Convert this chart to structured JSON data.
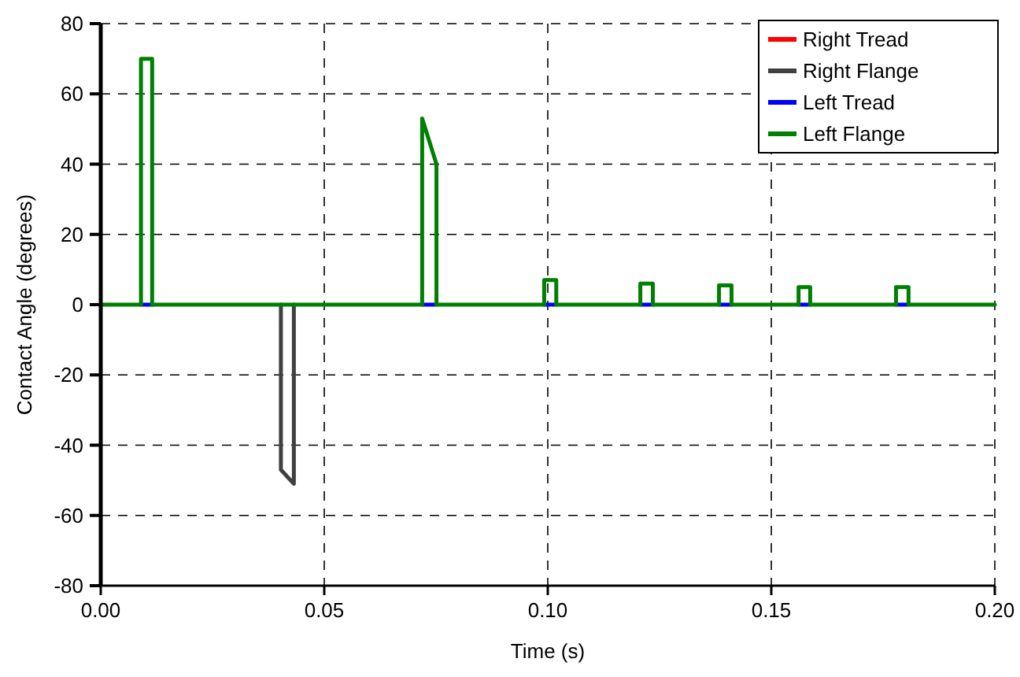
{
  "chart_data": {
    "type": "line",
    "xlabel": "Time (s)",
    "ylabel": "Contact Angle (degrees)",
    "xlim": [
      0,
      0.2
    ],
    "ylim": [
      -80,
      80
    ],
    "xticks": [
      {
        "value": 0,
        "label": "0.00"
      },
      {
        "value": 0.05,
        "label": "0.05"
      },
      {
        "value": 0.1,
        "label": "0.10"
      },
      {
        "value": 0.15,
        "label": "0.15"
      },
      {
        "value": 0.2,
        "label": "0.20"
      }
    ],
    "yticks": [
      -80,
      -60,
      -40,
      -20,
      0,
      20,
      40,
      60,
      80
    ],
    "grid": true,
    "legend": "top right",
    "line_style": "solid",
    "marker": "none",
    "series": [
      {
        "name": "Right Tread",
        "color": "#ff0000"
      },
      {
        "name": "Right Flange",
        "color": "#404040",
        "x": [
          0.0403,
          0.0403,
          0.0432,
          0.0432
        ],
        "values": [
          0,
          -47,
          -51,
          0
        ]
      },
      {
        "name": "Left Tread",
        "color": "#0000ff",
        "x": [
          0.009,
          0.0115,
          0.012,
          0.0719,
          0.0751,
          0.076,
          0.0992,
          0.1019,
          0.103,
          0.1207,
          0.1235,
          0.124,
          0.1383,
          0.1411,
          0.142,
          0.1561,
          0.1587,
          0.159,
          0.1779,
          0.1807
        ],
        "values": [
          0,
          0,
          null,
          0,
          0,
          null,
          0,
          0,
          null,
          0,
          0,
          null,
          0,
          0,
          null,
          0,
          0,
          null,
          0,
          0
        ]
      },
      {
        "name": "Left Flange",
        "color": "#008000",
        "x": [
          0,
          0.009,
          0.009,
          0.0106,
          0.0115,
          0.0115,
          0.0719,
          0.0719,
          0.0751,
          0.0751,
          0.0992,
          0.0992,
          0.1019,
          0.1019,
          0.1207,
          0.1207,
          0.1235,
          0.1235,
          0.1383,
          0.1383,
          0.1411,
          0.1411,
          0.1561,
          0.1561,
          0.1587,
          0.1587,
          0.1779,
          0.1779,
          0.1807,
          0.1807,
          0.2
        ],
        "values": [
          0,
          0,
          70,
          70,
          70,
          0,
          0,
          53,
          40,
          0,
          0,
          7,
          7,
          0,
          0,
          6,
          6,
          0,
          0,
          5.5,
          5.5,
          0,
          0,
          5,
          5,
          0,
          0,
          5,
          5,
          0,
          0
        ]
      }
    ]
  }
}
